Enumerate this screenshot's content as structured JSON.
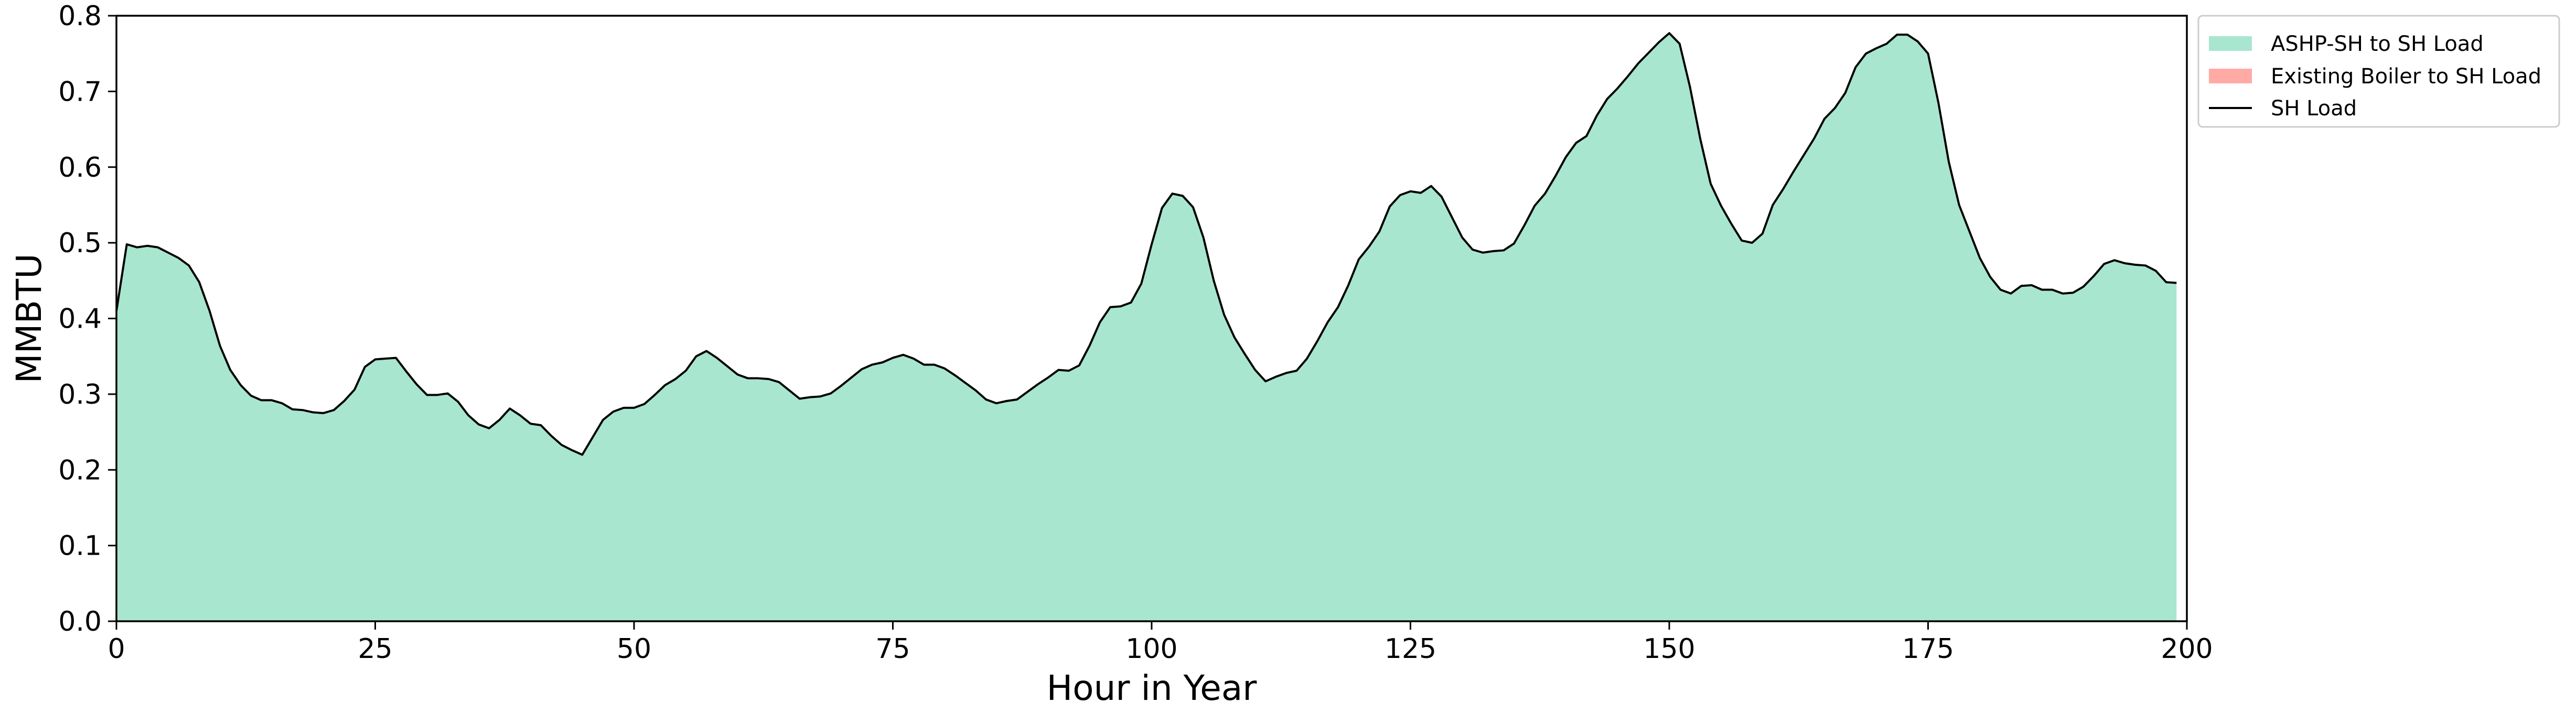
{
  "chart_data": {
    "type": "area",
    "title": "",
    "xlabel": "Hour in Year",
    "ylabel": "MMBTU",
    "xlim": [
      0,
      200
    ],
    "ylim": [
      0,
      0.8
    ],
    "x_ticks": [
      "0",
      "25",
      "50",
      "75",
      "100",
      "125",
      "150",
      "175",
      "200"
    ],
    "y_ticks": [
      "0.0",
      "0.1",
      "0.2",
      "0.3",
      "0.4",
      "0.5",
      "0.6",
      "0.7",
      "0.8"
    ],
    "grid": false,
    "legend_position": "outside-top-right",
    "legend": [
      {
        "label": "ASHP-SH to SH Load",
        "kind": "patch",
        "color": "#a8e6d0"
      },
      {
        "label": "Existing Boiler to SH Load",
        "kind": "patch",
        "color": "#ffaaa5"
      },
      {
        "label": "SH Load",
        "kind": "line",
        "color": "#000000"
      }
    ],
    "series": [
      {
        "name": "ASHP-SH to SH Load",
        "color": "#a8e6d0",
        "x": [
          0,
          1,
          2,
          3,
          4,
          5,
          6,
          7,
          8,
          9,
          10,
          11,
          12,
          13,
          14,
          15,
          16,
          17,
          18,
          19,
          20,
          21,
          22,
          23,
          24,
          25,
          26,
          27,
          28,
          29,
          30,
          31,
          32,
          33,
          34,
          35,
          36,
          37,
          38,
          39,
          40,
          41,
          42,
          43,
          44,
          45,
          46,
          47,
          48,
          49,
          50,
          51,
          52,
          53,
          54,
          55,
          56,
          57,
          58,
          59,
          60,
          61,
          62,
          63,
          64,
          65,
          66,
          67,
          68,
          69,
          70,
          71,
          72,
          73,
          74,
          75,
          76,
          77,
          78,
          79,
          80,
          81,
          82,
          83,
          84,
          85,
          86,
          87,
          88,
          89,
          90,
          91,
          92,
          93,
          94,
          95,
          96,
          97,
          98,
          99,
          100,
          101,
          102,
          103,
          104,
          105,
          106,
          107,
          108,
          109,
          110,
          111,
          112,
          113,
          114,
          115,
          116,
          117,
          118,
          119,
          120,
          121,
          122,
          123,
          124,
          125,
          126,
          127,
          128,
          129,
          130,
          131,
          132,
          133,
          134,
          135,
          136,
          137,
          138,
          139,
          140,
          141,
          142,
          143,
          144,
          145,
          146,
          147,
          148,
          149,
          150,
          151,
          152,
          153,
          154,
          155,
          156,
          157,
          158,
          159,
          160,
          161,
          162,
          163,
          164,
          165,
          166,
          167,
          168,
          169,
          170,
          171,
          172,
          173,
          174,
          175,
          176,
          177,
          178,
          179,
          180,
          181,
          182,
          183,
          184,
          185,
          186,
          187,
          188,
          189,
          190,
          191,
          192,
          193,
          194,
          195,
          196,
          197,
          198,
          199
        ],
        "values": [
          0.41,
          0.498,
          0.494,
          0.496,
          0.494,
          0.487,
          0.48,
          0.47,
          0.448,
          0.41,
          0.364,
          0.332,
          0.312,
          0.298,
          0.292,
          0.292,
          0.288,
          0.28,
          0.279,
          0.276,
          0.275,
          0.279,
          0.291,
          0.306,
          0.336,
          0.346,
          0.347,
          0.348,
          0.33,
          0.313,
          0.299,
          0.299,
          0.301,
          0.29,
          0.272,
          0.26,
          0.255,
          0.266,
          0.281,
          0.272,
          0.261,
          0.259,
          0.245,
          0.233,
          0.226,
          0.22,
          0.243,
          0.266,
          0.277,
          0.282,
          0.282,
          0.287,
          0.299,
          0.312,
          0.32,
          0.331,
          0.35,
          0.357,
          0.348,
          0.337,
          0.326,
          0.321,
          0.321,
          0.32,
          0.316,
          0.305,
          0.294,
          0.296,
          0.297,
          0.301,
          0.311,
          0.322,
          0.333,
          0.339,
          0.342,
          0.348,
          0.352,
          0.347,
          0.339,
          0.339,
          0.334,
          0.325,
          0.315,
          0.305,
          0.293,
          0.288,
          0.291,
          0.293,
          0.303,
          0.313,
          0.322,
          0.332,
          0.331,
          0.338,
          0.364,
          0.395,
          0.415,
          0.416,
          0.421,
          0.446,
          0.498,
          0.546,
          0.565,
          0.562,
          0.547,
          0.507,
          0.45,
          0.405,
          0.375,
          0.353,
          0.332,
          0.317,
          0.323,
          0.328,
          0.331,
          0.347,
          0.37,
          0.395,
          0.415,
          0.444,
          0.478,
          0.495,
          0.515,
          0.548,
          0.563,
          0.568,
          0.566,
          0.575,
          0.561,
          0.534,
          0.507,
          0.491,
          0.487,
          0.489,
          0.49,
          0.499,
          0.523,
          0.549,
          0.565,
          0.588,
          0.613,
          0.632,
          0.641,
          0.668,
          0.69,
          0.704,
          0.72,
          0.737,
          0.751,
          0.765,
          0.777,
          0.763,
          0.706,
          0.637,
          0.578,
          0.549,
          0.525,
          0.503,
          0.5,
          0.512,
          0.55,
          0.571,
          0.594,
          0.616,
          0.638,
          0.664,
          0.678,
          0.698,
          0.732,
          0.75,
          0.757,
          0.763,
          0.775,
          0.775,
          0.766,
          0.75,
          0.685,
          0.607,
          0.55,
          0.515,
          0.48,
          0.455,
          0.438,
          0.433,
          0.443,
          0.444,
          0.438,
          0.438,
          0.433,
          0.434,
          0.442,
          0.456,
          0.472,
          0.477,
          0.473,
          0.471,
          0.47,
          0.463,
          0.448,
          0.447
        ]
      },
      {
        "name": "Existing Boiler to SH Load",
        "color": "#ffaaa5",
        "values": []
      },
      {
        "name": "SH Load",
        "color": "#000000",
        "same_as": "ASHP-SH to SH Load"
      }
    ]
  }
}
